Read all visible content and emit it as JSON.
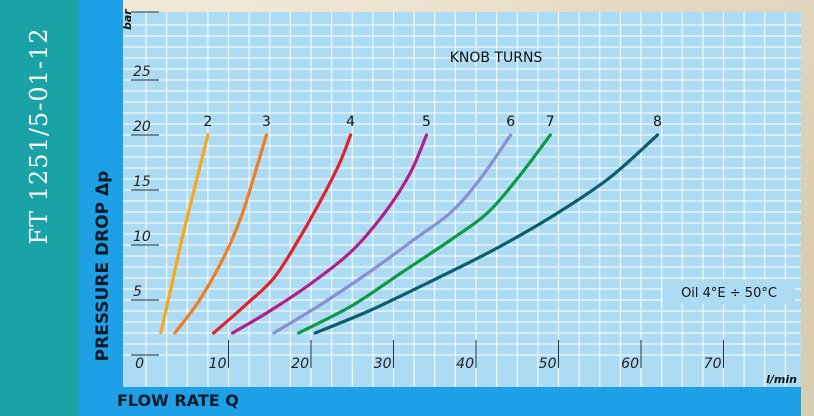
{
  "document": {
    "code": "FT 1251/5-01-12"
  },
  "chart_data": {
    "type": "line",
    "title": "KNOB TURNS",
    "xlabel": "FLOW RATE Q",
    "ylabel": "PRESSURE DROP Δp",
    "x_unit": "l/min",
    "y_unit": "bar",
    "xlim": [
      0,
      80
    ],
    "ylim": [
      0,
      30
    ],
    "x_ticks": [
      "0",
      "10",
      "20",
      "30",
      "40",
      "50",
      "60",
      "70"
    ],
    "y_ticks": [
      "5",
      "10",
      "15",
      "20",
      "25"
    ],
    "grid": true,
    "annotation": "Oil 4°E ÷ 50°C",
    "series": [
      {
        "name": "2",
        "color": "#f5a81c",
        "x": [
          1.8,
          3.0,
          4.5,
          6.0,
          7.5
        ],
        "y": [
          2,
          6,
          11,
          15.5,
          20
        ]
      },
      {
        "name": "3",
        "color": "#ef7d22",
        "x": [
          3.5,
          6.5,
          9.5,
          11.5,
          13.0,
          14.6
        ],
        "y": [
          2,
          5,
          9,
          12.5,
          16,
          20
        ]
      },
      {
        "name": "4",
        "color": "#e0222b",
        "x": [
          8.2,
          12,
          15.5,
          18.5,
          21.5,
          23.5,
          24.8
        ],
        "y": [
          2,
          4.5,
          7,
          10.5,
          14.5,
          17.5,
          20
        ]
      },
      {
        "name": "5",
        "color": "#b31f86",
        "x": [
          10.5,
          15,
          20,
          25,
          29,
          32,
          34
        ],
        "y": [
          2,
          4,
          6.5,
          9.5,
          13,
          16.5,
          20
        ]
      },
      {
        "name": "6",
        "color": "#8a8fcf",
        "x": [
          15.5,
          21,
          27,
          32.5,
          37,
          40.5,
          44.2
        ],
        "y": [
          2,
          4.5,
          7.5,
          10.5,
          13,
          16,
          20
        ]
      },
      {
        "name": "7",
        "color": "#0c9a45",
        "x": [
          18.5,
          25,
          31,
          37,
          41.5,
          45.5,
          49
        ],
        "y": [
          2,
          4.5,
          7.5,
          10.5,
          13,
          16.5,
          20
        ]
      },
      {
        "name": "8",
        "color": "#0b5e6e",
        "x": [
          20.5,
          27,
          34,
          42,
          49,
          56,
          62
        ],
        "y": [
          2,
          4,
          6.5,
          9.5,
          12.5,
          16,
          20
        ]
      }
    ]
  }
}
